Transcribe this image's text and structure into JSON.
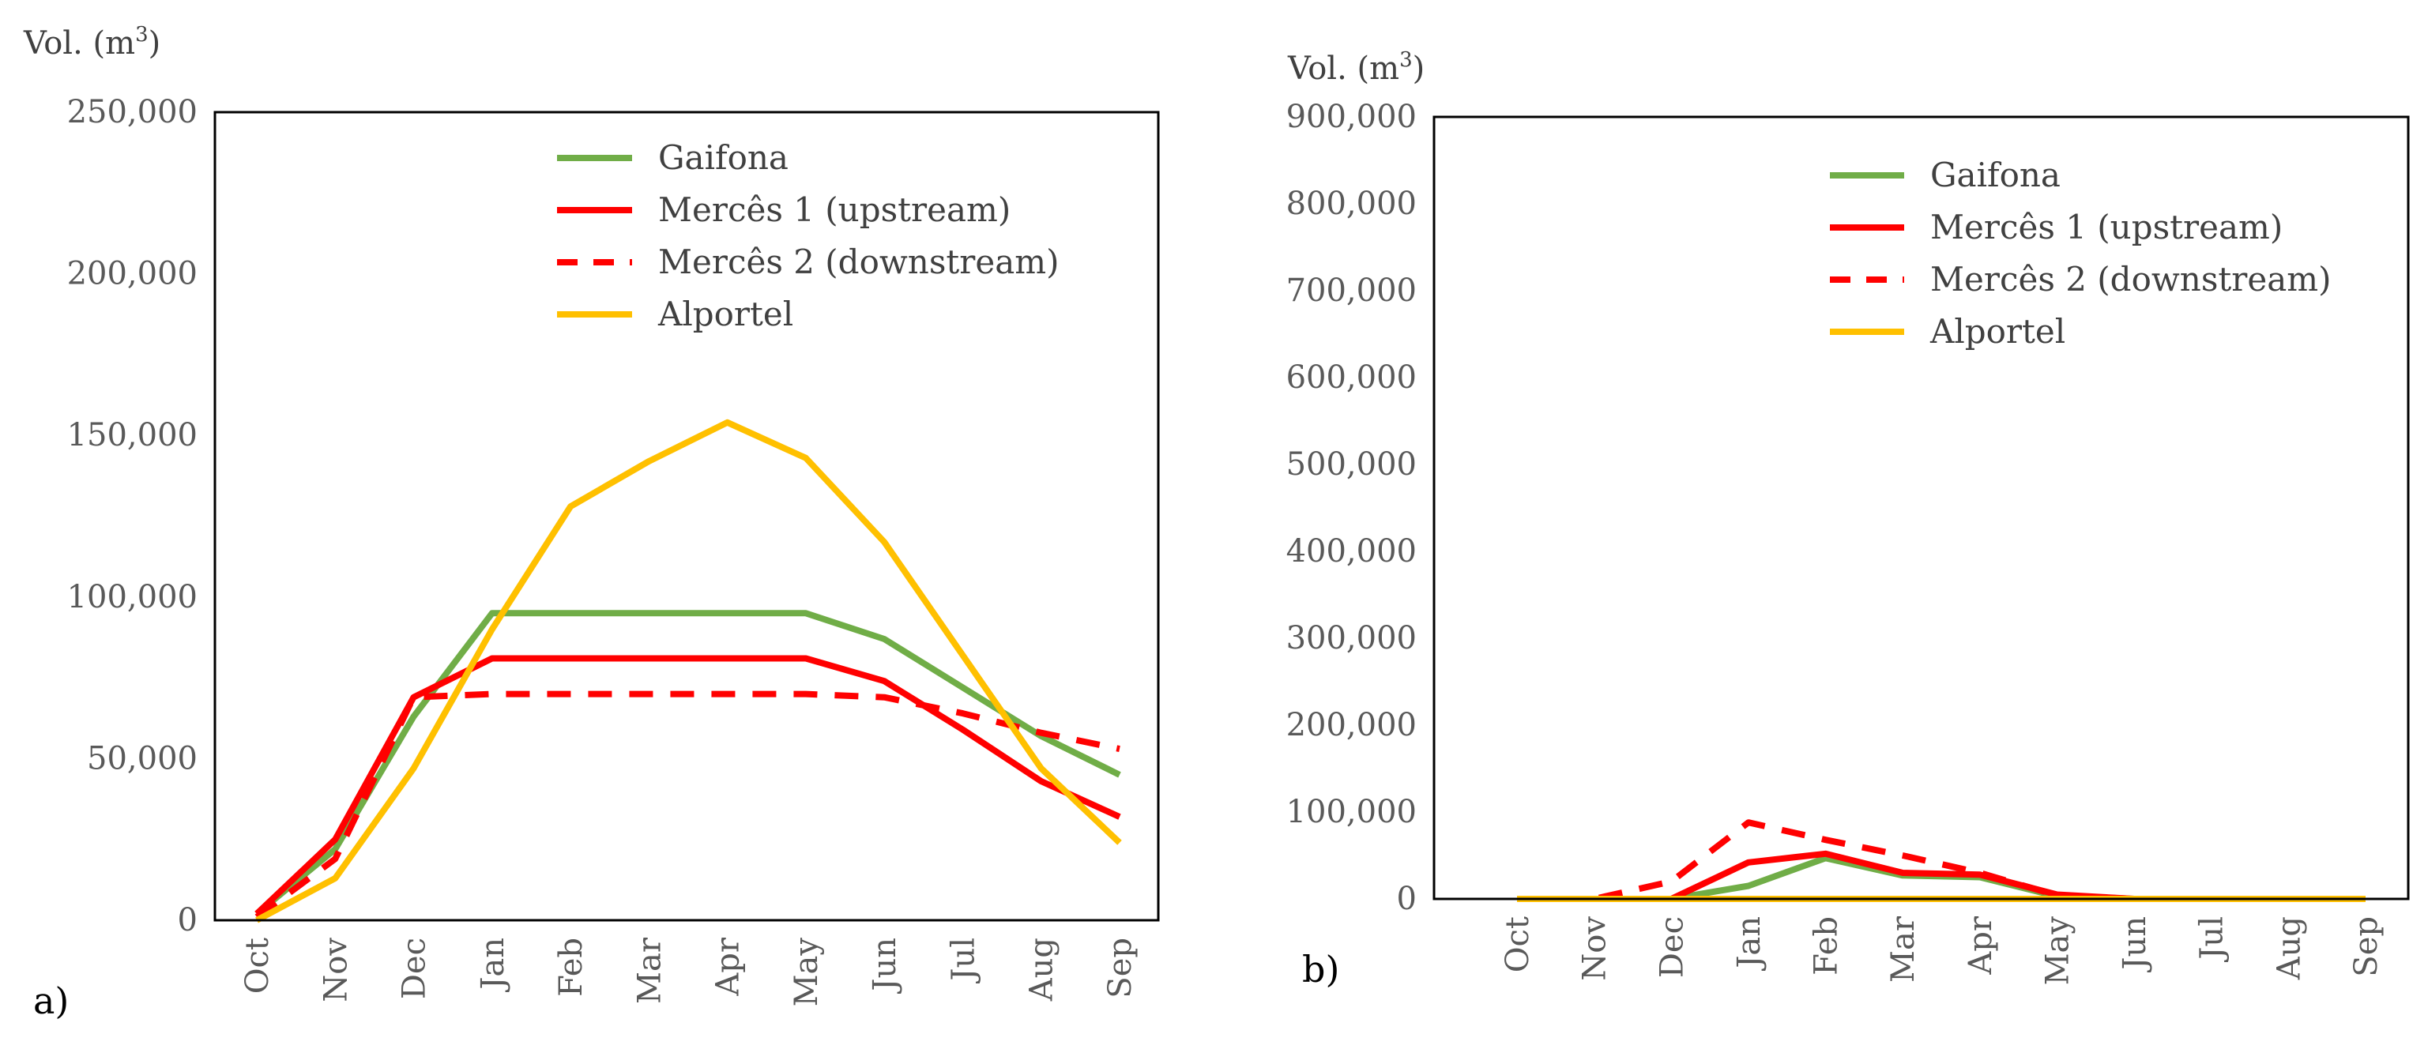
{
  "panels": [
    {
      "id": "a",
      "label": "a)",
      "ylabel": "Vol. (m",
      "ylabel_sup": "3",
      "ylabel_close": ")"
    },
    {
      "id": "b",
      "label": "b)",
      "ylabel": "Vol. (m",
      "ylabel_sup": "3",
      "ylabel_close": ")"
    }
  ],
  "series_styles": [
    {
      "name": "Gaifona",
      "color": "#70ad47",
      "dash": false
    },
    {
      "name": "Mercês 1 (upstream)",
      "color": "#ff0000",
      "dash": false
    },
    {
      "name": "Mercês 2 (downstream)",
      "color": "#ff0000",
      "dash": true
    },
    {
      "name": "Alportel",
      "color": "#ffc000",
      "dash": false
    }
  ],
  "chart_data": [
    {
      "type": "line",
      "panel": "a",
      "categories": [
        "Oct",
        "Nov",
        "Dec",
        "Jan",
        "Feb",
        "Mar",
        "Apr",
        "May",
        "Jun",
        "Jul",
        "Aug",
        "Sep"
      ],
      "ylabel": "Vol. (m3)",
      "ylim": [
        0,
        250000
      ],
      "yticks": [
        0,
        50000,
        100000,
        150000,
        200000,
        250000
      ],
      "ytick_labels": [
        "0",
        "50,000",
        "100,000",
        "150,000",
        "200,000",
        "250,000"
      ],
      "grid": false,
      "legend": "top-right",
      "series": [
        {
          "name": "Gaifona",
          "values": [
            2000,
            22000,
            63000,
            95000,
            95000,
            95000,
            95000,
            95000,
            87000,
            72000,
            57000,
            45000
          ]
        },
        {
          "name": "Mercês 1 (upstream)",
          "values": [
            2000,
            25000,
            69000,
            81000,
            81000,
            81000,
            81000,
            81000,
            74000,
            59000,
            43000,
            32000
          ]
        },
        {
          "name": "Mercês 2 (downstream)",
          "values": [
            1000,
            19000,
            69000,
            70000,
            70000,
            70000,
            70000,
            70000,
            69000,
            64000,
            58000,
            53000
          ]
        },
        {
          "name": "Alportel",
          "values": [
            0,
            13000,
            47000,
            90000,
            128000,
            142000,
            154000,
            143000,
            117000,
            82000,
            47000,
            24000
          ]
        }
      ]
    },
    {
      "type": "line",
      "panel": "b",
      "categories": [
        "Oct",
        "Nov",
        "Dec",
        "Jan",
        "Feb",
        "Mar",
        "Apr",
        "May",
        "Jun",
        "Jul",
        "Aug",
        "Sep"
      ],
      "ylabel": "Vol. (m3)",
      "ylim": [
        0,
        900000
      ],
      "yticks": [
        0,
        100000,
        200000,
        300000,
        400000,
        500000,
        600000,
        700000,
        800000,
        900000
      ],
      "ytick_labels": [
        "0",
        "100,000",
        "200,000",
        "300,000",
        "400,000",
        "500,000",
        "600,000",
        "700,000",
        "800,000",
        "900,000"
      ],
      "grid": false,
      "legend": "top-right",
      "series": [
        {
          "name": "Gaifona",
          "values": [
            0,
            0,
            0,
            15000,
            47000,
            27000,
            25000,
            3000,
            0,
            0,
            0,
            0
          ]
        },
        {
          "name": "Mercês 1 (upstream)",
          "values": [
            0,
            0,
            0,
            42000,
            52000,
            30000,
            28000,
            5000,
            0,
            0,
            0,
            0
          ]
        },
        {
          "name": "Mercês 2 (downstream)",
          "values": [
            0,
            0,
            20000,
            88000,
            68000,
            50000,
            30000,
            4000,
            0,
            0,
            0,
            0
          ]
        },
        {
          "name": "Alportel",
          "values": [
            0,
            0,
            0,
            0,
            0,
            0,
            0,
            0,
            0,
            0,
            0,
            0
          ]
        }
      ]
    }
  ]
}
